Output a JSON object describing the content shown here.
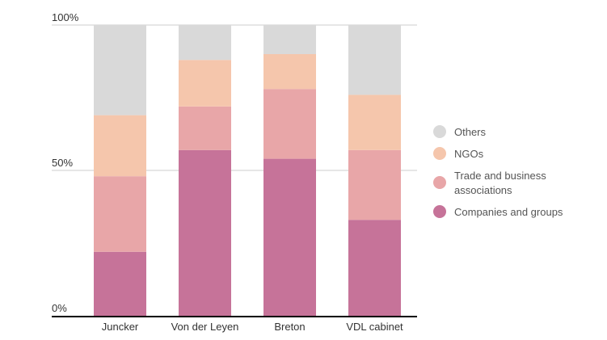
{
  "chart_data": {
    "type": "bar",
    "stacked": true,
    "categories": [
      "Juncker",
      "Von der Leyen",
      "Breton",
      "VDL cabinet"
    ],
    "series": [
      {
        "name": "Companies and groups",
        "values": [
          22,
          57,
          54,
          33
        ],
        "color": "#c67399"
      },
      {
        "name": "Trade and business associations",
        "values": [
          26,
          15,
          24,
          24
        ],
        "color": "#e8a6a8"
      },
      {
        "name": "NGOs",
        "values": [
          21,
          16,
          12,
          19
        ],
        "color": "#f5c6ac"
      },
      {
        "name": "Others",
        "values": [
          31,
          12,
          10,
          24
        ],
        "color": "#d9d9d9"
      }
    ],
    "yticks": [
      "0%",
      "50%",
      "100%"
    ],
    "ylim": [
      0,
      100
    ],
    "grid": true,
    "legend": {
      "position": "right",
      "order": [
        "Others",
        "NGOs",
        "Trade and business associations",
        "Companies and groups"
      ],
      "labels": {
        "Others": [
          "Others"
        ],
        "NGOs": [
          "NGOs"
        ],
        "Trade and business associations": [
          "Trade and business",
          "associations"
        ],
        "Companies and groups": [
          "Companies and groups"
        ]
      }
    },
    "title": "",
    "xlabel": "",
    "ylabel": ""
  }
}
